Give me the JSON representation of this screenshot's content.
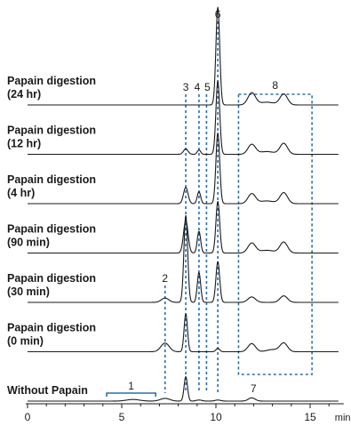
{
  "chart_data": {
    "type": "line",
    "title": "",
    "xlabel": "",
    "x_unit": "min",
    "xlim": [
      0,
      16.5
    ],
    "x_ticks": [
      0,
      5,
      10,
      15
    ],
    "accent_color": "#2a6db0",
    "trace_color": "#1a1a1a",
    "traces": [
      {
        "label": [
          "Without Papain"
        ],
        "baseline": 0,
        "peaks": [
          {
            "t": 5.6,
            "h": 0.03,
            "w": 0.35
          },
          {
            "t": 7.3,
            "h": 0.05,
            "w": 0.25
          },
          {
            "t": 8.4,
            "h": 0.45,
            "w": 0.09
          },
          {
            "t": 9.1,
            "h": 0.02,
            "w": 0.15
          },
          {
            "t": 10.1,
            "h": 0.02,
            "w": 0.15
          },
          {
            "t": 11.9,
            "h": 0.06,
            "w": 0.18
          }
        ]
      },
      {
        "label": [
          "Papain digestion",
          "(0 min)"
        ],
        "baseline": 1,
        "peaks": [
          {
            "t": 7.3,
            "h": 0.16,
            "w": 0.22
          },
          {
            "t": 8.4,
            "h": 0.7,
            "w": 0.09
          },
          {
            "t": 10.1,
            "h": 0.06,
            "w": 0.1
          },
          {
            "t": 11.9,
            "h": 0.15,
            "w": 0.2
          },
          {
            "t": 13.6,
            "h": 0.16,
            "w": 0.2
          },
          {
            "t": 13.0,
            "h": 0.04,
            "w": 0.3
          }
        ]
      },
      {
        "label": [
          "Papain digestion",
          "(30 min)"
        ],
        "baseline": 2,
        "peaks": [
          {
            "t": 7.3,
            "h": 0.08,
            "w": 0.2
          },
          {
            "t": 8.4,
            "h": 1.6,
            "w": 0.1
          },
          {
            "t": 9.1,
            "h": 0.55,
            "w": 0.09
          },
          {
            "t": 10.1,
            "h": 0.75,
            "w": 0.1
          },
          {
            "t": 11.9,
            "h": 0.1,
            "w": 0.2
          },
          {
            "t": 13.6,
            "h": 0.12,
            "w": 0.2
          }
        ]
      },
      {
        "label": [
          "Papain digestion",
          "(90 min)"
        ],
        "baseline": 3,
        "peaks": [
          {
            "t": 8.4,
            "h": 0.6,
            "w": 0.12
          },
          {
            "t": 9.1,
            "h": 0.4,
            "w": 0.09
          },
          {
            "t": 10.1,
            "h": 0.95,
            "w": 0.1
          },
          {
            "t": 11.9,
            "h": 0.18,
            "w": 0.2
          },
          {
            "t": 13.6,
            "h": 0.2,
            "w": 0.2
          },
          {
            "t": 12.7,
            "h": 0.05,
            "w": 0.4
          }
        ]
      },
      {
        "label": [
          "Papain digestion",
          "(4 hr)"
        ],
        "baseline": 4,
        "peaks": [
          {
            "t": 8.4,
            "h": 0.3,
            "w": 0.12
          },
          {
            "t": 9.1,
            "h": 0.22,
            "w": 0.09
          },
          {
            "t": 10.1,
            "h": 1.3,
            "w": 0.1
          },
          {
            "t": 11.9,
            "h": 0.18,
            "w": 0.2
          },
          {
            "t": 13.6,
            "h": 0.2,
            "w": 0.2
          },
          {
            "t": 12.7,
            "h": 0.05,
            "w": 0.4
          }
        ]
      },
      {
        "label": [
          "Papain digestion",
          "(12 hr)"
        ],
        "baseline": 5,
        "peaks": [
          {
            "t": 8.4,
            "h": 0.1,
            "w": 0.12
          },
          {
            "t": 9.1,
            "h": 0.08,
            "w": 0.09
          },
          {
            "t": 10.1,
            "h": 1.35,
            "w": 0.1
          },
          {
            "t": 11.9,
            "h": 0.18,
            "w": 0.2
          },
          {
            "t": 13.6,
            "h": 0.2,
            "w": 0.2
          },
          {
            "t": 12.7,
            "h": 0.05,
            "w": 0.4
          }
        ]
      },
      {
        "label": [
          "Papain digestion",
          "(24 hr)"
        ],
        "baseline": 6,
        "peaks": [
          {
            "t": 10.1,
            "h": 1.8,
            "w": 0.1
          },
          {
            "t": 11.9,
            "h": 0.22,
            "w": 0.2
          },
          {
            "t": 13.6,
            "h": 0.2,
            "w": 0.2
          },
          {
            "t": 12.7,
            "h": 0.05,
            "w": 0.4
          }
        ]
      }
    ],
    "peak_guides": [
      {
        "label": "1",
        "kind": "bracket",
        "x_start": 4.2,
        "x_end": 6.8
      },
      {
        "label": "2",
        "kind": "line",
        "x": 7.3,
        "label_side": "top"
      },
      {
        "label": "3",
        "kind": "line",
        "x": 8.4,
        "label_side": "top"
      },
      {
        "label": "4",
        "kind": "line",
        "x": 9.1,
        "label_side": "top"
      },
      {
        "label": "5",
        "kind": "line",
        "x": 9.5,
        "label_side": "top"
      },
      {
        "label": "6",
        "kind": "line",
        "x": 10.1,
        "label_side": "top"
      },
      {
        "label": "7",
        "kind": "point",
        "x": 11.9
      },
      {
        "label": "8",
        "kind": "box",
        "x_start": 11.2,
        "x_end": 15.1
      }
    ]
  }
}
